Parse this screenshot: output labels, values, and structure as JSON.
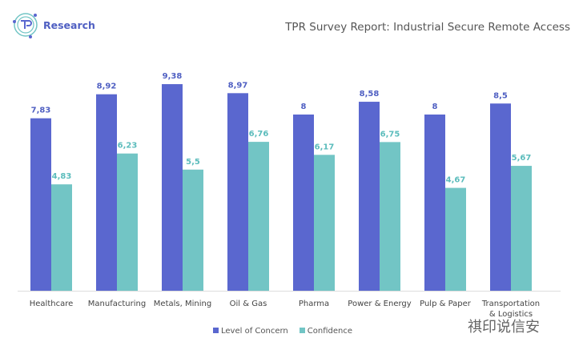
{
  "logo": {
    "text": "Research"
  },
  "watermark": "祺印说信安",
  "chart_data": {
    "type": "bar",
    "title": "TPR Survey Report: Industrial Secure Remote Access",
    "categories": [
      "Healthcare",
      "Manufacturing",
      "Metals, Mining",
      "Oil & Gas",
      "Pharma",
      "Power & Energy",
      "Pulp & Paper",
      "Transportation & Logistics"
    ],
    "series": [
      {
        "name": "Level of Concern",
        "color": "#5a67cf",
        "values": [
          7.83,
          8.92,
          9.38,
          8.97,
          8,
          8.58,
          8,
          8.5
        ],
        "labels": [
          "7,83",
          "8,92",
          "9,38",
          "8,97",
          "8",
          "8,58",
          "8",
          "8,5"
        ]
      },
      {
        "name": "Confidence",
        "color": "#72c5c5",
        "values": [
          4.83,
          6.23,
          5.5,
          6.76,
          6.17,
          6.75,
          4.67,
          5.67
        ],
        "labels": [
          "4,83",
          "6,23",
          "5,5",
          "6,76",
          "6,17",
          "6,75",
          "4,67",
          "5,67"
        ]
      }
    ],
    "ylim": [
      0,
      10
    ],
    "grid": false,
    "legend": "bottom"
  }
}
